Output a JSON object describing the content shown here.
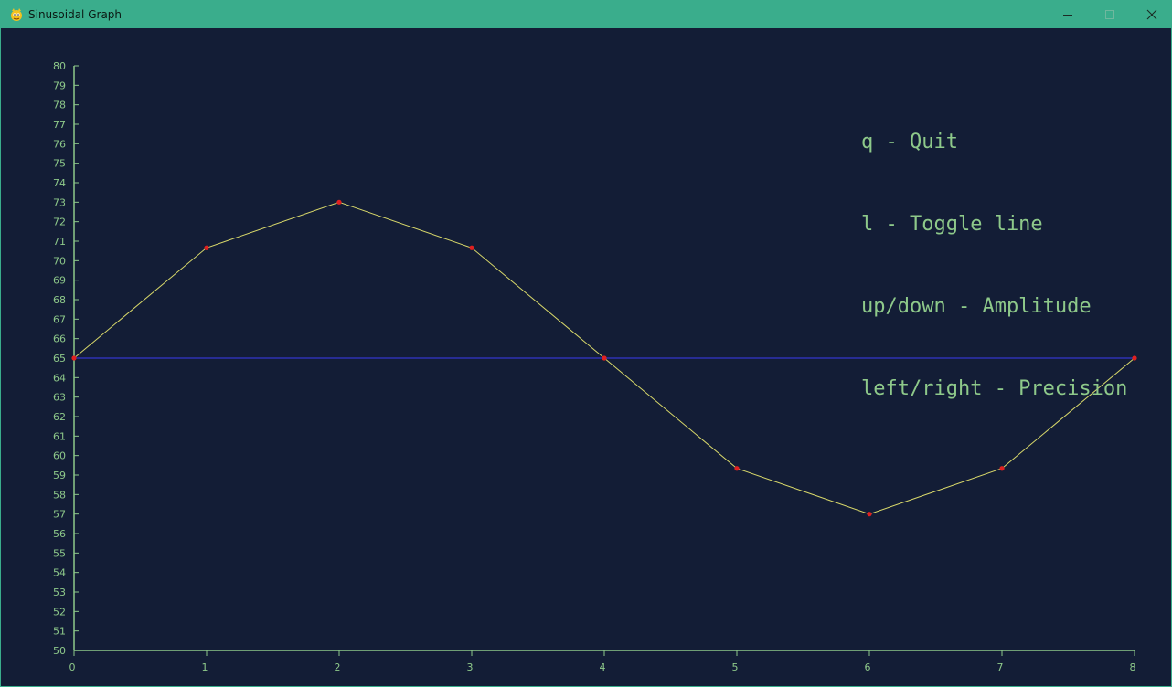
{
  "window": {
    "title": "Sinusoidal Graph",
    "controls": [
      "minimize",
      "maximize",
      "close"
    ]
  },
  "help": {
    "lines": [
      "q - Quit",
      "l - Toggle line",
      "up/down - Amplitude",
      "left/right - Precision"
    ]
  },
  "colors": {
    "background": "#131d36",
    "titlebar": "#3aad8c",
    "axis": "#8ec98a",
    "curve": "#d8d86a",
    "points": "#e02020",
    "baseline": "#3b3bf0",
    "help_text": "#8ec98a"
  },
  "chart_data": {
    "type": "line",
    "x": [
      0,
      1,
      2,
      3,
      4,
      5,
      6,
      7,
      8
    ],
    "series": [
      {
        "values": [
          65,
          70.66,
          73,
          70.66,
          65,
          59.34,
          57,
          59.34,
          65
        ]
      }
    ],
    "baseline": 65,
    "xlim": [
      0,
      8
    ],
    "ylim": [
      50,
      80
    ],
    "x_ticks": [
      0,
      1,
      2,
      3,
      4,
      5,
      6,
      7,
      8
    ],
    "y_ticks": [
      50,
      51,
      52,
      53,
      54,
      55,
      56,
      57,
      58,
      59,
      60,
      61,
      62,
      63,
      64,
      65,
      66,
      67,
      68,
      69,
      70,
      71,
      72,
      73,
      74,
      75,
      76,
      77,
      78,
      79,
      80
    ],
    "grid": false,
    "legend": "none"
  }
}
